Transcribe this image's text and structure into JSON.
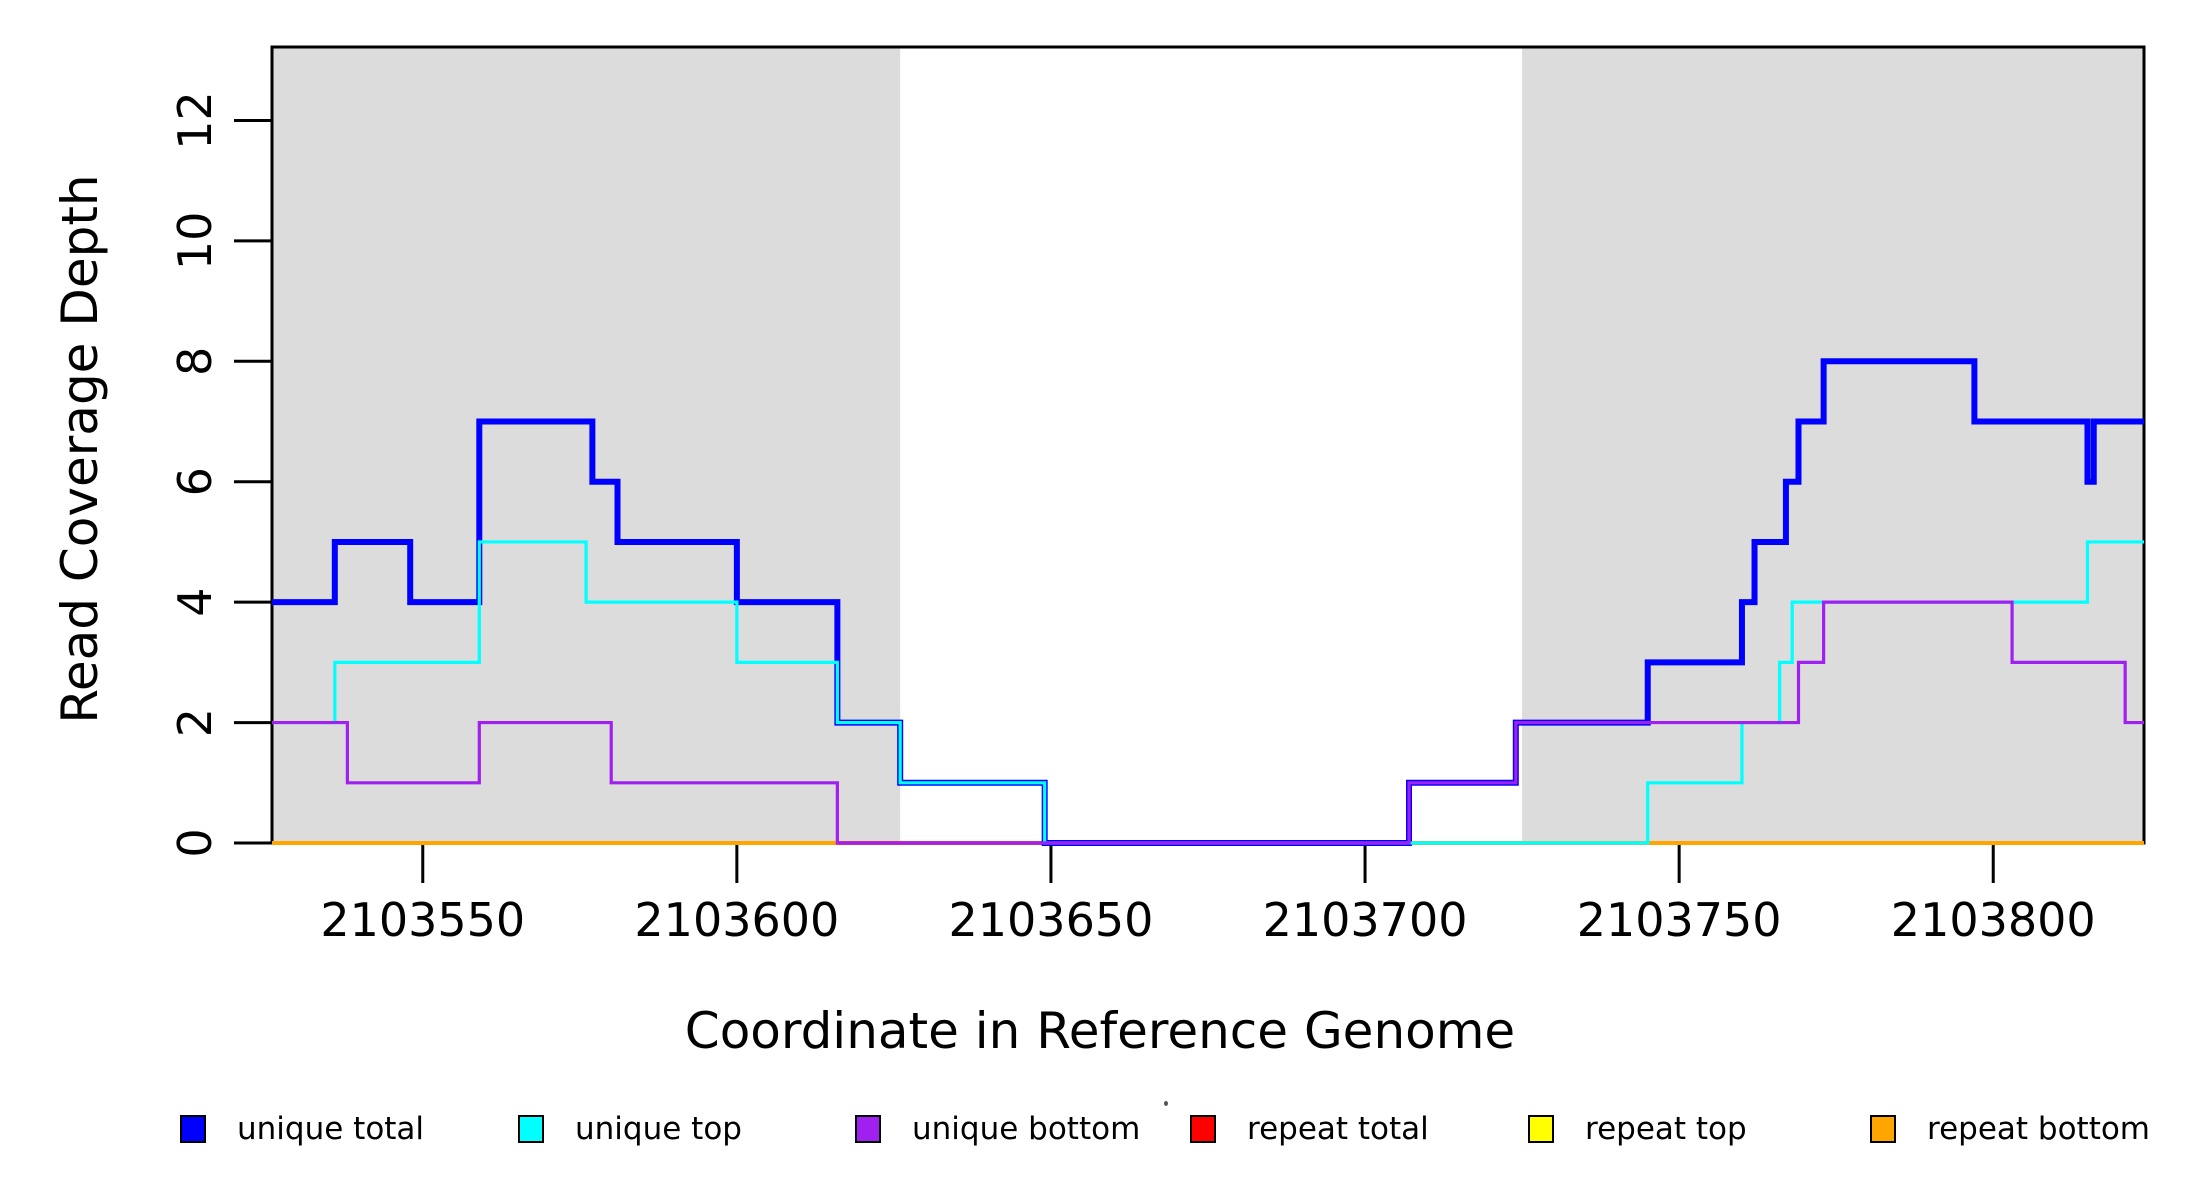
{
  "axes": {
    "x_title": "Coordinate in Reference Genome",
    "y_title": "Read Coverage Depth"
  },
  "chart_data": {
    "type": "step",
    "title": "",
    "xlabel": "Coordinate in Reference Genome",
    "ylabel": "Read Coverage Depth",
    "xlim": [
      2103526,
      2103824
    ],
    "ylim": [
      0,
      13.22
    ],
    "grid": false,
    "legend_position": "bottom",
    "shaded_region_color": "#DCDCDC",
    "shaded_regions": [
      {
        "x0": 2103526,
        "x1": 2103626
      },
      {
        "x0": 2103725,
        "x1": 2103824
      }
    ],
    "xticks": [
      {
        "value": 2103550,
        "label": "2103550"
      },
      {
        "value": 2103600,
        "label": "2103600"
      },
      {
        "value": 2103650,
        "label": "2103650"
      },
      {
        "value": 2103700,
        "label": "2103700"
      },
      {
        "value": 2103750,
        "label": "2103750"
      },
      {
        "value": 2103800,
        "label": "2103800"
      }
    ],
    "yticks": [
      {
        "value": 0,
        "label": "0"
      },
      {
        "value": 2,
        "label": "2"
      },
      {
        "value": 4,
        "label": "4"
      },
      {
        "value": 6,
        "label": "6"
      },
      {
        "value": 8,
        "label": "8"
      },
      {
        "value": 10,
        "label": "10"
      },
      {
        "value": 12,
        "label": "12"
      }
    ],
    "series": [
      {
        "name": "unique-total",
        "label": "unique total",
        "color": "#0000FF",
        "lwd": 6,
        "z": 4,
        "steps": [
          [
            2103526,
            4
          ],
          [
            2103536,
            5
          ],
          [
            2103548,
            4
          ],
          [
            2103559,
            7
          ],
          [
            2103577,
            6
          ],
          [
            2103581,
            5
          ],
          [
            2103600,
            4
          ],
          [
            2103616,
            2
          ],
          [
            2103626,
            1
          ],
          [
            2103649,
            0
          ],
          [
            2103707,
            1
          ],
          [
            2103724,
            2
          ],
          [
            2103745,
            3
          ],
          [
            2103760,
            4
          ],
          [
            2103762,
            5
          ],
          [
            2103767,
            6
          ],
          [
            2103769,
            7
          ],
          [
            2103773,
            8
          ],
          [
            2103797,
            7
          ],
          [
            2103815,
            6
          ],
          [
            2103816,
            7
          ]
        ],
        "x_end": 2103824
      },
      {
        "name": "unique-top",
        "label": "unique top",
        "color": "#00FFFF",
        "lwd": 3.2,
        "z": 5,
        "steps": [
          [
            2103526,
            2
          ],
          [
            2103536,
            3
          ],
          [
            2103559,
            5
          ],
          [
            2103576,
            4
          ],
          [
            2103600,
            3
          ],
          [
            2103616,
            2
          ],
          [
            2103626,
            1
          ],
          [
            2103649,
            0
          ],
          [
            2103745,
            1
          ],
          [
            2103760,
            2
          ],
          [
            2103766,
            3
          ],
          [
            2103768,
            4
          ],
          [
            2103815,
            5
          ]
        ],
        "x_end": 2103824
      },
      {
        "name": "unique-bottom",
        "label": "unique bottom",
        "color": "#A020F0",
        "lwd": 3.2,
        "z": 6,
        "steps": [
          [
            2103526,
            2
          ],
          [
            2103538,
            1
          ],
          [
            2103559,
            2
          ],
          [
            2103580,
            1
          ],
          [
            2103616,
            0
          ],
          [
            2103707,
            1
          ],
          [
            2103724,
            2
          ],
          [
            2103769,
            3
          ],
          [
            2103773,
            4
          ],
          [
            2103803,
            3
          ],
          [
            2103821,
            2
          ]
        ],
        "x_end": 2103824
      },
      {
        "name": "repeat-total",
        "label": "repeat total",
        "color": "#FF0000",
        "lwd": 3.5,
        "z": 3,
        "steps": [
          [
            2103616,
            0
          ]
        ],
        "x_end": 2103649
      },
      {
        "name": "repeat-top",
        "label": "repeat top",
        "color": "#FFFF00",
        "lwd": 3.5,
        "z": 1,
        "steps": [
          [
            2103526,
            0
          ]
        ],
        "x_end": 2103824
      },
      {
        "name": "repeat-bottom",
        "label": "repeat bottom",
        "color": "#FFA500",
        "lwd": 4,
        "z": 2,
        "steps": [
          [
            2103526,
            0
          ]
        ],
        "x_end": 2103824
      }
    ]
  }
}
